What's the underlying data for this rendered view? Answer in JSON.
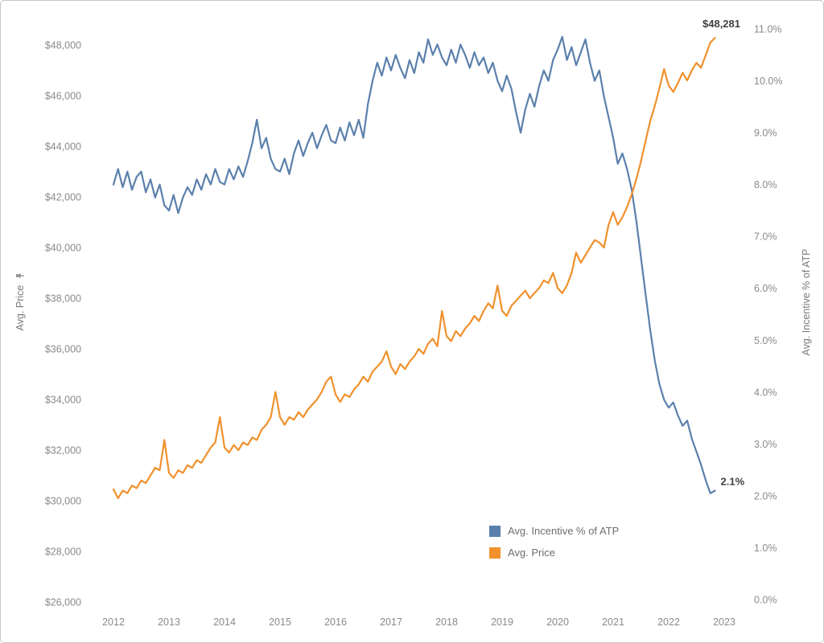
{
  "chart_data": {
    "type": "line",
    "x_axis": {
      "tick_labels": [
        "2012",
        "2013",
        "2014",
        "2015",
        "2016",
        "2017",
        "2018",
        "2019",
        "2020",
        "2021",
        "2022",
        "2023"
      ],
      "range": [
        2012,
        2023
      ]
    },
    "y_left": {
      "label": "Avg. Price",
      "tick_values": [
        26000,
        28000,
        30000,
        32000,
        34000,
        36000,
        38000,
        40000,
        42000,
        44000,
        46000,
        48000
      ],
      "tick_labels": [
        "$26,000",
        "$28,000",
        "$30,000",
        "$32,000",
        "$34,000",
        "$36,000",
        "$38,000",
        "$40,000",
        "$42,000",
        "$44,000",
        "$46,000",
        "$48,000"
      ],
      "range": [
        26000,
        48000
      ]
    },
    "y_right": {
      "label": "Avg. Incentive % of ATP",
      "tick_values": [
        0,
        1,
        2,
        3,
        4,
        5,
        6,
        7,
        8,
        9,
        10,
        11
      ],
      "tick_labels": [
        "0.0%",
        "1.0%",
        "2.0%",
        "3.0%",
        "4.0%",
        "5.0%",
        "6.0%",
        "7.0%",
        "8.0%",
        "9.0%",
        "10.0%",
        "11.0%"
      ],
      "range": [
        0,
        11
      ]
    },
    "x_start": 2012.0,
    "x_step_months": 1,
    "series": [
      {
        "name": "Avg. Incentive % of ATP",
        "axis": "right",
        "color": "#5b80ab",
        "values": [
          8.0,
          8.3,
          7.95,
          8.25,
          7.9,
          8.15,
          8.25,
          7.85,
          8.1,
          7.75,
          8.0,
          7.6,
          7.5,
          7.8,
          7.45,
          7.75,
          7.95,
          7.8,
          8.1,
          7.9,
          8.2,
          8.0,
          8.3,
          8.05,
          8.0,
          8.3,
          8.1,
          8.35,
          8.15,
          8.45,
          8.8,
          9.25,
          8.7,
          8.9,
          8.5,
          8.3,
          8.25,
          8.5,
          8.2,
          8.6,
          8.85,
          8.55,
          8.8,
          9.0,
          8.7,
          8.95,
          9.15,
          8.85,
          8.8,
          9.1,
          8.85,
          9.2,
          8.95,
          9.25,
          8.9,
          9.55,
          10.0,
          10.35,
          10.1,
          10.45,
          10.2,
          10.5,
          10.25,
          10.05,
          10.4,
          10.15,
          10.55,
          10.35,
          10.8,
          10.5,
          10.7,
          10.45,
          10.3,
          10.6,
          10.35,
          10.7,
          10.5,
          10.25,
          10.55,
          10.3,
          10.45,
          10.15,
          10.35,
          10.0,
          9.8,
          10.1,
          9.85,
          9.4,
          9.0,
          9.45,
          9.75,
          9.5,
          9.9,
          10.2,
          10.0,
          10.4,
          10.6,
          10.85,
          10.4,
          10.65,
          10.3,
          10.55,
          10.8,
          10.35,
          10.0,
          10.2,
          9.7,
          9.3,
          8.9,
          8.4,
          8.6,
          8.3,
          7.9,
          7.3,
          6.6,
          5.9,
          5.2,
          4.6,
          4.15,
          3.85,
          3.7,
          3.8,
          3.55,
          3.35,
          3.45,
          3.1,
          2.85,
          2.6,
          2.3,
          2.05,
          2.1
        ]
      },
      {
        "name": "Avg. Price",
        "axis": "left",
        "color": "#f0912d",
        "values": [
          30450,
          30100,
          30400,
          30300,
          30600,
          30500,
          30800,
          30700,
          31000,
          31300,
          31200,
          32400,
          31100,
          30900,
          31200,
          31100,
          31400,
          31300,
          31600,
          31500,
          31800,
          32100,
          32300,
          33300,
          32100,
          31900,
          32200,
          32000,
          32300,
          32200,
          32500,
          32400,
          32800,
          33000,
          33300,
          34300,
          33300,
          33000,
          33300,
          33200,
          33500,
          33300,
          33600,
          33800,
          34000,
          34300,
          34700,
          34900,
          34200,
          33900,
          34200,
          34100,
          34400,
          34600,
          34900,
          34700,
          35100,
          35300,
          35500,
          35900,
          35300,
          35000,
          35400,
          35200,
          35500,
          35700,
          36000,
          35800,
          36200,
          36400,
          36100,
          37500,
          36500,
          36300,
          36700,
          36500,
          36800,
          37000,
          37300,
          37100,
          37500,
          37800,
          37600,
          38500,
          37500,
          37300,
          37700,
          37900,
          38100,
          38300,
          38000,
          38200,
          38400,
          38700,
          38600,
          39000,
          38400,
          38200,
          38500,
          39000,
          39800,
          39400,
          39700,
          40000,
          40300,
          40200,
          40000,
          40900,
          41400,
          40900,
          41200,
          41600,
          42100,
          42700,
          43400,
          44200,
          45000,
          45600,
          46300,
          47050,
          46400,
          46150,
          46500,
          46900,
          46600,
          47000,
          47300,
          47100,
          47600,
          48100,
          48281
        ]
      }
    ],
    "annotations": [
      {
        "text": "$48,281",
        "series": "Avg. Price",
        "position": "above",
        "color": "#3f3f3f"
      },
      {
        "text": "2.1%",
        "series": "Avg. Incentive % of ATP",
        "position": "right",
        "color": "#3f3f3f"
      }
    ],
    "legend": {
      "position": "bottom-center-right",
      "entries": [
        "Avg. Incentive % of ATP",
        "Avg. Price"
      ]
    }
  }
}
